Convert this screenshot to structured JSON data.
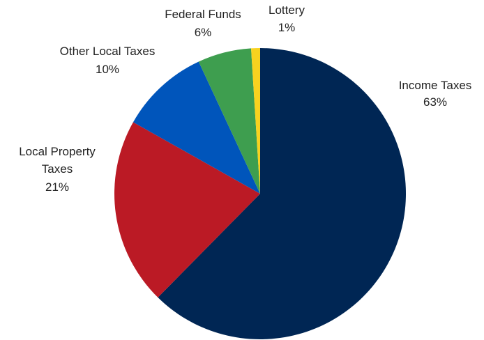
{
  "chart_data": {
    "type": "pie",
    "slices": [
      {
        "label": "Income Taxes",
        "value": 63,
        "value_label": "63%",
        "color": "#002654"
      },
      {
        "label": "Local Property Taxes",
        "value": 21,
        "value_label": "21%",
        "color": "#BB1A25"
      },
      {
        "label": "Other Local Taxes",
        "value": 10,
        "value_label": "10%",
        "color": "#0055BB"
      },
      {
        "label": "Federal Funds",
        "value": 6,
        "value_label": "6%",
        "color": "#3E9E4F"
      },
      {
        "label": "Lottery",
        "value": 1,
        "value_label": "1%",
        "color": "#F8D21F"
      }
    ],
    "start": "12 o'clock",
    "direction": "clockwise",
    "legend": "none",
    "labels": "outside"
  }
}
